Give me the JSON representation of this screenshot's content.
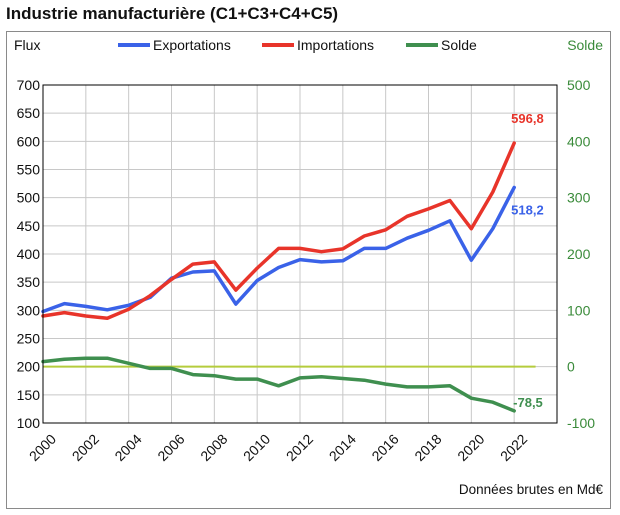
{
  "chart_data": {
    "type": "line",
    "title": "Industrie manufacturière (C1+C3+C4+C5)",
    "ylabel_left": "Flux",
    "ylabel_right": "Solde",
    "note": "Données brutes en Md€",
    "ylim_left": [
      100,
      700
    ],
    "yticks_left": [
      "100",
      "150",
      "200",
      "250",
      "300",
      "350",
      "400",
      "450",
      "500",
      "550",
      "600",
      "650",
      "700"
    ],
    "ylim_right": [
      -100,
      500
    ],
    "yticks_right": [
      "-100",
      "0",
      "100",
      "200",
      "300",
      "400",
      "500"
    ],
    "xlim": [
      2000,
      2024
    ],
    "xticks": [
      "2000",
      "2002",
      "2004",
      "2006",
      "2008",
      "2010",
      "2012",
      "2014",
      "2016",
      "2018",
      "2020",
      "2022"
    ],
    "x": [
      2000,
      2001,
      2002,
      2003,
      2004,
      2005,
      2006,
      2007,
      2008,
      2009,
      2010,
      2011,
      2012,
      2013,
      2014,
      2015,
      2016,
      2017,
      2018,
      2019,
      2020,
      2021,
      2022
    ],
    "series": [
      {
        "name": "Exportations",
        "axis": "left",
        "color": "#3a62e8",
        "values": [
          298,
          312,
          307,
          301,
          309,
          323,
          357,
          368,
          370,
          311,
          353,
          376,
          390,
          386,
          388,
          410,
          410,
          428,
          442,
          459,
          389,
          445,
          518.2
        ],
        "end_label": "518,2"
      },
      {
        "name": "Importations",
        "axis": "left",
        "color": "#e8342a",
        "values": [
          290,
          296,
          290,
          286,
          302,
          326,
          355,
          382,
          386,
          336,
          375,
          410,
          410,
          404,
          409,
          432,
          443,
          467,
          480,
          495,
          445,
          510,
          596.8
        ],
        "end_label": "596,8"
      },
      {
        "name": "Solde",
        "axis": "right",
        "color": "#3f8f4f",
        "values": [
          9,
          13,
          15,
          15,
          6,
          -3,
          -3,
          -14,
          -16,
          -22,
          -22,
          -34,
          -20,
          -18,
          -21,
          -24,
          -31,
          -36,
          -36,
          -34,
          -56,
          -63,
          -78.5
        ],
        "end_label": "-78,5"
      }
    ],
    "reference_line": {
      "axis": "right",
      "value": 0,
      "color": "#b5cc3c"
    }
  }
}
